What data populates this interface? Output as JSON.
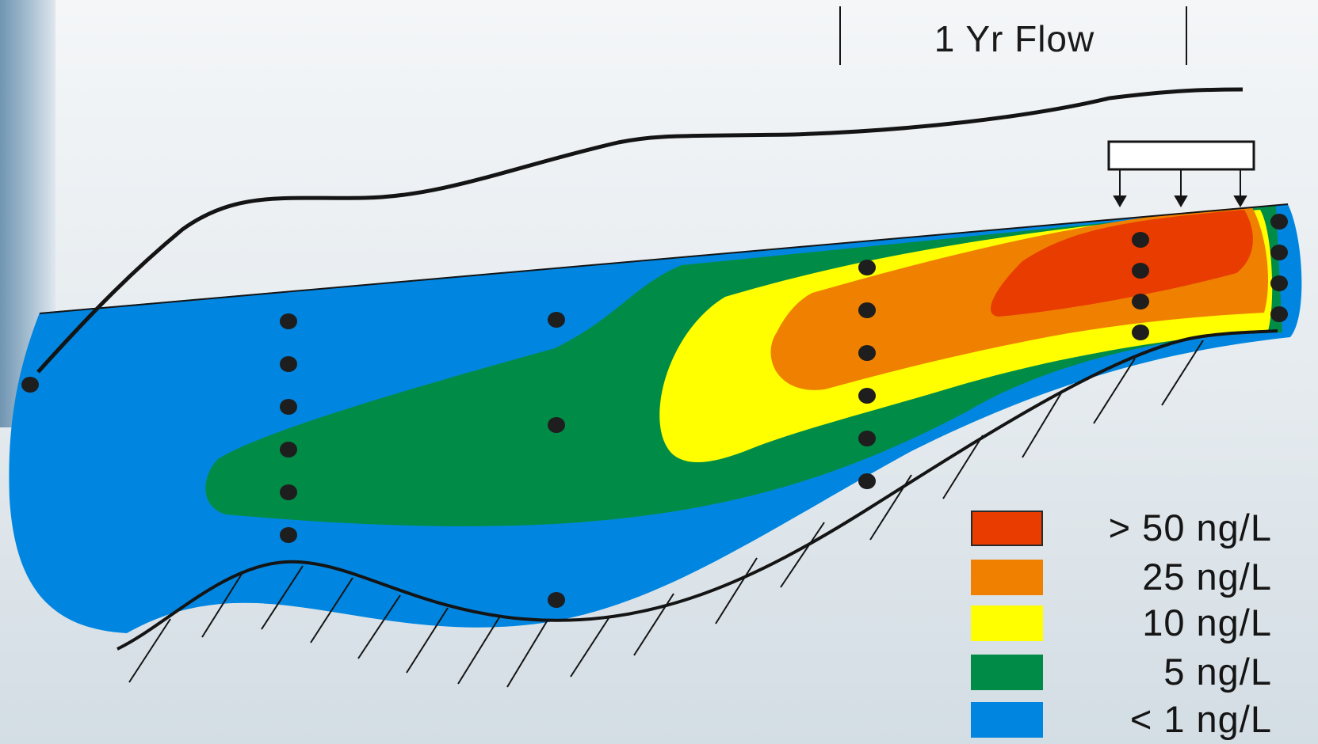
{
  "flow_label": "1 Yr Flow",
  "legend": [
    {
      "label": "> 50 ng/L",
      "color": "#e83c00"
    },
    {
      "label": "25 ng/L",
      "color": "#f08000"
    },
    {
      "label": "10 ng/L",
      "color": "#ffff00"
    },
    {
      "label": "5 ng/L",
      "color": "#008c46"
    },
    {
      "label": "< 1 ng/L",
      "color": "#0086e0"
    }
  ],
  "colors": {
    "plume_lt1": "#0086e0",
    "plume_5": "#008c46",
    "plume_10": "#ffff00",
    "plume_25": "#f08000",
    "plume_gt50": "#e83c00",
    "outline": "#141414",
    "sample_point": "#1e1e1e"
  },
  "icons": {
    "source_box": "rectangle-source-icon",
    "flow_arrow": "down-arrow-icon",
    "sample_point": "dot-icon",
    "ground_hatch": "hatch-lines"
  }
}
